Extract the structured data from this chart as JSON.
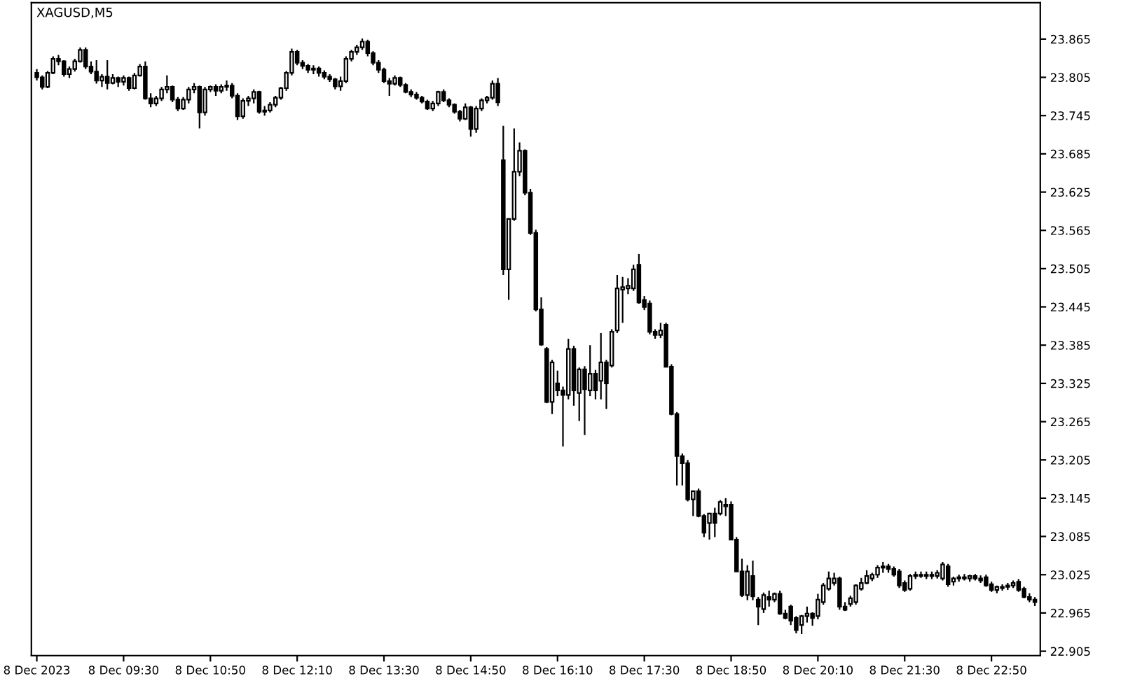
{
  "chart_data": {
    "type": "candlestick",
    "title": "XAGUSD,M5",
    "color": "#000000",
    "grid": false,
    "categories": [
      "8 Dec 2023",
      null,
      null,
      null,
      null,
      null,
      null,
      null,
      null,
      null,
      null,
      null,
      null,
      null,
      null,
      null,
      "8 Dec 09:30",
      null,
      null,
      null,
      null,
      null,
      null,
      null,
      null,
      null,
      null,
      null,
      null,
      null,
      null,
      null,
      "8 Dec 10:50",
      null,
      null,
      null,
      null,
      null,
      null,
      null,
      null,
      null,
      null,
      null,
      null,
      null,
      null,
      null,
      "8 Dec 12:10",
      null,
      null,
      null,
      null,
      null,
      null,
      null,
      null,
      null,
      null,
      null,
      null,
      null,
      null,
      null,
      "8 Dec 13:30",
      null,
      null,
      null,
      null,
      null,
      null,
      null,
      null,
      null,
      null,
      null,
      null,
      null,
      null,
      null,
      "8 Dec 14:50",
      null,
      null,
      null,
      null,
      null,
      null,
      null,
      null,
      null,
      null,
      null,
      null,
      null,
      null,
      null,
      "8 Dec 16:10",
      null,
      null,
      null,
      null,
      null,
      null,
      null,
      null,
      null,
      null,
      null,
      null,
      null,
      null,
      null,
      "8 Dec 17:30",
      null,
      null,
      null,
      null,
      null,
      null,
      null,
      null,
      null,
      null,
      null,
      null,
      null,
      null,
      null,
      "8 Dec 18:50",
      null,
      null,
      null,
      null,
      null,
      null,
      null,
      null,
      null,
      null,
      null,
      null,
      null,
      null,
      null,
      "8 Dec 20:10",
      null,
      null,
      null,
      null,
      null,
      null,
      null,
      null,
      null,
      null,
      null,
      null,
      null,
      null,
      null,
      "8 Dec 21:30",
      null,
      null,
      null,
      null,
      null,
      null,
      null,
      null,
      null,
      null,
      null,
      null,
      null,
      null,
      null,
      "8 Dec 22:50",
      null,
      null,
      null,
      null,
      null,
      null,
      null,
      null
    ],
    "ohlc": [
      [
        23.812,
        23.818,
        23.8,
        23.805
      ],
      [
        23.805,
        23.808,
        23.786,
        23.79
      ],
      [
        23.79,
        23.815,
        23.788,
        23.812
      ],
      [
        23.812,
        23.838,
        23.81,
        23.834
      ],
      [
        23.834,
        23.84,
        23.824,
        23.83
      ],
      [
        23.83,
        23.832,
        23.806,
        23.81
      ],
      [
        23.81,
        23.822,
        23.804,
        23.818
      ],
      [
        23.818,
        23.834,
        23.814,
        23.83
      ],
      [
        23.83,
        23.852,
        23.828,
        23.848
      ],
      [
        23.848,
        23.852,
        23.818,
        23.822
      ],
      [
        23.822,
        23.83,
        23.81,
        23.814
      ],
      [
        23.814,
        23.832,
        23.795,
        23.8
      ],
      [
        23.8,
        23.81,
        23.79,
        23.806
      ],
      [
        23.806,
        23.832,
        23.786,
        23.796
      ],
      [
        23.796,
        23.81,
        23.794,
        23.804
      ],
      [
        23.804,
        23.806,
        23.79,
        23.798
      ],
      [
        23.798,
        23.808,
        23.792,
        23.804
      ],
      [
        23.804,
        23.806,
        23.784,
        23.788
      ],
      [
        23.788,
        23.812,
        23.786,
        23.808
      ],
      [
        23.808,
        23.826,
        23.806,
        23.822
      ],
      [
        23.822,
        23.83,
        23.77,
        23.772
      ],
      [
        23.772,
        23.78,
        23.758,
        23.764
      ],
      [
        23.764,
        23.776,
        23.76,
        23.772
      ],
      [
        23.772,
        23.79,
        23.768,
        23.786
      ],
      [
        23.786,
        23.808,
        23.78,
        23.79
      ],
      [
        23.79,
        23.792,
        23.766,
        23.77
      ],
      [
        23.77,
        23.774,
        23.752,
        23.756
      ],
      [
        23.756,
        23.774,
        23.754,
        23.77
      ],
      [
        23.77,
        23.79,
        23.764,
        23.786
      ],
      [
        23.786,
        23.796,
        23.78,
        23.79
      ],
      [
        23.79,
        23.792,
        23.725,
        23.75
      ],
      [
        23.75,
        23.79,
        23.745,
        23.786
      ],
      [
        23.786,
        23.792,
        23.782,
        23.79
      ],
      [
        23.79,
        23.794,
        23.776,
        23.784
      ],
      [
        23.784,
        23.794,
        23.78,
        23.79
      ],
      [
        23.79,
        23.8,
        23.784,
        23.792
      ],
      [
        23.792,
        23.796,
        23.772,
        23.776
      ],
      [
        23.776,
        23.78,
        23.738,
        23.744
      ],
      [
        23.744,
        23.772,
        23.74,
        23.768
      ],
      [
        23.768,
        23.776,
        23.76,
        23.772
      ],
      [
        23.772,
        23.786,
        23.764,
        23.782
      ],
      [
        23.782,
        23.784,
        23.748,
        23.751
      ],
      [
        23.751,
        23.76,
        23.745,
        23.753
      ],
      [
        23.753,
        23.766,
        23.75,
        23.762
      ],
      [
        23.762,
        23.776,
        23.758,
        23.773
      ],
      [
        23.773,
        23.79,
        23.77,
        23.788
      ],
      [
        23.788,
        23.815,
        23.784,
        23.812
      ],
      [
        23.812,
        23.85,
        23.808,
        23.845
      ],
      [
        23.845,
        23.848,
        23.824,
        23.828
      ],
      [
        23.828,
        23.832,
        23.818,
        23.823
      ],
      [
        23.823,
        23.826,
        23.812,
        23.817
      ],
      [
        23.817,
        23.824,
        23.81,
        23.819
      ],
      [
        23.819,
        23.822,
        23.806,
        23.812
      ],
      [
        23.812,
        23.816,
        23.802,
        23.806
      ],
      [
        23.806,
        23.81,
        23.798,
        23.802
      ],
      [
        23.802,
        23.804,
        23.786,
        23.791
      ],
      [
        23.791,
        23.806,
        23.784,
        23.799
      ],
      [
        23.799,
        23.838,
        23.796,
        23.834
      ],
      [
        23.834,
        23.848,
        23.83,
        23.845
      ],
      [
        23.845,
        23.856,
        23.84,
        23.852
      ],
      [
        23.852,
        23.866,
        23.848,
        23.861
      ],
      [
        23.861,
        23.864,
        23.838,
        23.843
      ],
      [
        23.843,
        23.846,
        23.824,
        23.828
      ],
      [
        23.828,
        23.832,
        23.812,
        23.817
      ],
      [
        23.817,
        23.82,
        23.796,
        23.799
      ],
      [
        23.799,
        23.804,
        23.776,
        23.795
      ],
      [
        23.795,
        23.808,
        23.792,
        23.804
      ],
      [
        23.804,
        23.806,
        23.79,
        23.793
      ],
      [
        23.793,
        23.796,
        23.78,
        23.782
      ],
      [
        23.782,
        23.786,
        23.774,
        23.778
      ],
      [
        23.778,
        23.782,
        23.77,
        23.773
      ],
      [
        23.773,
        23.776,
        23.764,
        23.767
      ],
      [
        23.767,
        23.77,
        23.754,
        23.756
      ],
      [
        23.756,
        23.768,
        23.752,
        23.764
      ],
      [
        23.764,
        23.784,
        23.76,
        23.782
      ],
      [
        23.782,
        23.786,
        23.766,
        23.769
      ],
      [
        23.769,
        23.772,
        23.758,
        23.762
      ],
      [
        23.762,
        23.764,
        23.748,
        23.751
      ],
      [
        23.751,
        23.754,
        23.736,
        23.74
      ],
      [
        23.74,
        23.764,
        23.738,
        23.758
      ],
      [
        23.758,
        23.76,
        23.712,
        23.724
      ],
      [
        23.724,
        23.76,
        23.718,
        23.756
      ],
      [
        23.756,
        23.772,
        23.752,
        23.769
      ],
      [
        23.769,
        23.776,
        23.764,
        23.773
      ],
      [
        23.773,
        23.8,
        23.77,
        23.795
      ],
      [
        23.795,
        23.804,
        23.76,
        23.766
      ],
      [
        23.675,
        23.729,
        23.495,
        23.504
      ],
      [
        23.504,
        23.583,
        23.456,
        23.583
      ],
      [
        23.583,
        23.725,
        23.58,
        23.657
      ],
      [
        23.657,
        23.703,
        23.65,
        23.69
      ],
      [
        23.69,
        23.692,
        23.62,
        23.624
      ],
      [
        23.624,
        23.63,
        23.558,
        23.561
      ],
      [
        23.561,
        23.566,
        23.438,
        23.441
      ],
      [
        23.441,
        23.46,
        23.384,
        23.386
      ],
      [
        23.379,
        23.382,
        23.294,
        23.296
      ],
      [
        23.296,
        23.362,
        23.277,
        23.358
      ],
      [
        23.325,
        23.345,
        23.305,
        23.314
      ],
      [
        23.314,
        23.32,
        23.226,
        23.307
      ],
      [
        23.307,
        23.395,
        23.3,
        23.379
      ],
      [
        23.379,
        23.384,
        23.29,
        23.314
      ],
      [
        23.31,
        23.35,
        23.266,
        23.347
      ],
      [
        23.347,
        23.352,
        23.244,
        23.316
      ],
      [
        23.314,
        23.385,
        23.305,
        23.34
      ],
      [
        23.34,
        23.346,
        23.3,
        23.314
      ],
      [
        23.329,
        23.404,
        23.3,
        23.358
      ],
      [
        23.358,
        23.362,
        23.285,
        23.325
      ],
      [
        23.353,
        23.41,
        23.35,
        23.406
      ],
      [
        23.408,
        23.495,
        23.404,
        23.474
      ],
      [
        23.472,
        23.492,
        23.42,
        23.476
      ],
      [
        23.474,
        23.49,
        23.465,
        23.478
      ],
      [
        23.474,
        23.511,
        23.47,
        23.504
      ],
      [
        23.511,
        23.528,
        23.45,
        23.452
      ],
      [
        23.456,
        23.462,
        23.44,
        23.445
      ],
      [
        23.45,
        23.455,
        23.402,
        23.406
      ],
      [
        23.406,
        23.41,
        23.395,
        23.401
      ],
      [
        23.401,
        23.42,
        23.396,
        23.408
      ],
      [
        23.417,
        23.42,
        23.35,
        23.351
      ],
      [
        23.351,
        23.355,
        23.275,
        23.277
      ],
      [
        23.277,
        23.28,
        23.165,
        23.211
      ],
      [
        23.211,
        23.215,
        23.165,
        23.2
      ],
      [
        23.2,
        23.205,
        23.14,
        23.143
      ],
      [
        23.143,
        23.157,
        23.117,
        23.156
      ],
      [
        23.156,
        23.16,
        23.115,
        23.117
      ],
      [
        23.117,
        23.12,
        23.084,
        23.091
      ],
      [
        23.106,
        23.122,
        23.08,
        23.121
      ],
      [
        23.121,
        23.13,
        23.084,
        23.106
      ],
      [
        23.121,
        23.142,
        23.118,
        23.139
      ],
      [
        23.135,
        23.145,
        23.117,
        23.132
      ],
      [
        23.135,
        23.14,
        23.08,
        23.08
      ],
      [
        23.08,
        23.084,
        23.03,
        23.03
      ],
      [
        23.03,
        23.05,
        22.99,
        22.993
      ],
      [
        22.993,
        23.04,
        22.985,
        23.03
      ],
      [
        23.023,
        23.047,
        22.985,
        22.991
      ],
      [
        22.986,
        22.99,
        22.946,
        22.975
      ],
      [
        22.971,
        22.997,
        22.965,
        22.993
      ],
      [
        22.99,
        23.0,
        22.975,
        22.986
      ],
      [
        22.986,
        22.997,
        22.982,
        22.995
      ],
      [
        22.995,
        23.0,
        22.962,
        22.964
      ],
      [
        22.964,
        22.97,
        22.955,
        22.957
      ],
      [
        22.975,
        22.978,
        22.946,
        22.953
      ],
      [
        22.957,
        22.96,
        22.933,
        22.938
      ],
      [
        22.946,
        22.962,
        22.932,
        22.96
      ],
      [
        22.96,
        22.975,
        22.95,
        22.964
      ],
      [
        22.964,
        22.966,
        22.945,
        22.957
      ],
      [
        22.96,
        22.995,
        22.955,
        22.986
      ],
      [
        22.982,
        23.012,
        22.978,
        23.008
      ],
      [
        23.003,
        23.03,
        23.0,
        23.019
      ],
      [
        23.012,
        23.028,
        23.008,
        23.019
      ],
      [
        23.019,
        23.022,
        22.97,
        22.975
      ],
      [
        22.975,
        22.982,
        22.968,
        22.97
      ],
      [
        22.979,
        22.992,
        22.975,
        22.988
      ],
      [
        22.982,
        23.01,
        22.978,
        23.008
      ],
      [
        23.003,
        23.02,
        23.0,
        23.012
      ],
      [
        23.012,
        23.032,
        23.01,
        23.023
      ],
      [
        23.019,
        23.028,
        23.015,
        23.025
      ],
      [
        23.025,
        23.04,
        23.02,
        23.036
      ],
      [
        23.036,
        23.045,
        23.028,
        23.038
      ],
      [
        23.038,
        23.042,
        23.028,
        23.034
      ],
      [
        23.034,
        23.038,
        23.022,
        23.025
      ],
      [
        23.03,
        23.034,
        23.004,
        23.008
      ],
      [
        23.012,
        23.016,
        22.998,
        23.001
      ],
      [
        23.003,
        23.026,
        23.0,
        23.023
      ],
      [
        23.023,
        23.03,
        23.018,
        23.025
      ],
      [
        23.025,
        23.03,
        23.02,
        23.023
      ],
      [
        23.023,
        23.03,
        23.018,
        23.025
      ],
      [
        23.025,
        23.03,
        23.018,
        23.023
      ],
      [
        23.023,
        23.032,
        23.019,
        23.028
      ],
      [
        23.019,
        23.045,
        23.016,
        23.041
      ],
      [
        23.038,
        23.042,
        23.006,
        23.01
      ],
      [
        23.014,
        23.022,
        23.008,
        23.019
      ],
      [
        23.019,
        23.025,
        23.014,
        23.021
      ],
      [
        23.021,
        23.026,
        23.016,
        23.019
      ],
      [
        23.019,
        23.025,
        23.014,
        23.023
      ],
      [
        23.023,
        23.026,
        23.016,
        23.019
      ],
      [
        23.019,
        23.024,
        23.012,
        23.016
      ],
      [
        23.021,
        23.025,
        23.006,
        23.008
      ],
      [
        23.01,
        23.014,
        22.998,
        23.001
      ],
      [
        23.001,
        23.008,
        22.996,
        23.006
      ],
      [
        23.004,
        23.01,
        23.0,
        23.006
      ],
      [
        23.006,
        23.012,
        23.001,
        23.008
      ],
      [
        23.008,
        23.016,
        23.004,
        23.012
      ],
      [
        23.014,
        23.018,
        22.998,
        23.001
      ],
      [
        23.003,
        23.006,
        22.988,
        22.99
      ],
      [
        22.99,
        22.996,
        22.982,
        22.986
      ],
      [
        22.986,
        22.99,
        22.976,
        22.982
      ]
    ],
    "ylim": [
      22.898,
      23.922
    ],
    "yticks": [
      22.905,
      22.965,
      23.025,
      23.085,
      23.145,
      23.205,
      23.265,
      23.325,
      23.385,
      23.445,
      23.505,
      23.565,
      23.625,
      23.685,
      23.745,
      23.805,
      23.865
    ]
  }
}
